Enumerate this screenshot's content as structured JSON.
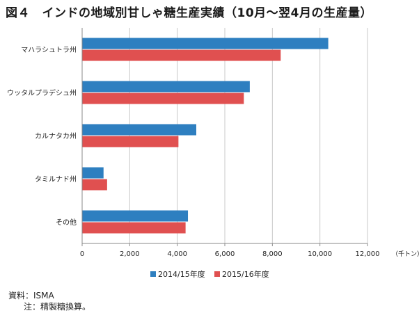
{
  "title": "図４　インドの地域別甘しゃ糖生産実績（10月～翌4月の生産量）",
  "notes": {
    "source": "資料：ISMA",
    "note": "注：精製糖換算。"
  },
  "chart_data": {
    "type": "bar",
    "orientation": "horizontal",
    "title": "図４　インドの地域別甘しゃ糖生産実績（10月～翌4月の生産量）",
    "categories": [
      "マハラシュトラ州",
      "ウッタルプラデシュ州",
      "カルナタカ州",
      "タミルナド州",
      "その他"
    ],
    "series": [
      {
        "name": "2014/15年度",
        "color": "#2e7fc0",
        "values": [
          10350,
          7050,
          4800,
          900,
          4450
        ]
      },
      {
        "name": "2015/16年度",
        "color": "#e05050",
        "values": [
          8350,
          6800,
          4050,
          1050,
          4350
        ]
      }
    ],
    "xlabel": "（千トン）",
    "xlim": [
      0,
      12000
    ],
    "xticks": [
      0,
      2000,
      4000,
      6000,
      8000,
      10000,
      12000
    ],
    "xtick_labels": [
      "0",
      "2,000",
      "4,000",
      "6,000",
      "8,000",
      "10,000",
      "12,000"
    ],
    "grid": true,
    "legend_position": "bottom"
  }
}
